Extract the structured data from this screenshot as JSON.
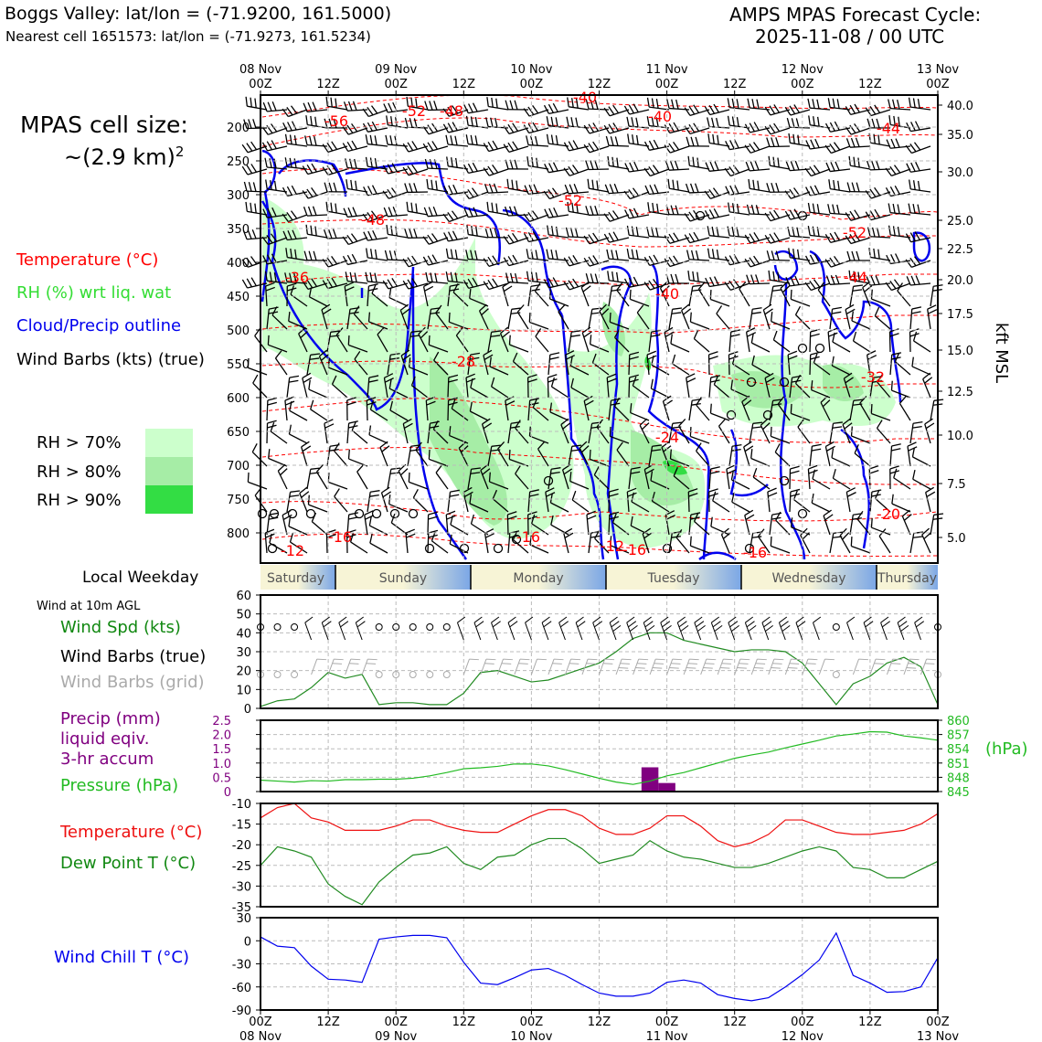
{
  "header": {
    "location_line": "Boggs Valley: lat/lon = (-71.9200, 161.5000)",
    "cell_line": "Nearest cell 1651573: lat/lon = (-71.9273, 161.5234)",
    "forecast_title": "AMPS MPAS Forecast Cycle:",
    "forecast_cycle": "2025-11-08 / 00 UTC"
  },
  "legend": {
    "cell_size_label": "MPAS cell size:",
    "cell_size_value": "~(2.9 km)",
    "cell_size_exp": "2",
    "temperature": "Temperature (°C)",
    "rh": "RH (%) wrt liq. wat",
    "cloud": "Cloud/Precip outline",
    "barbs": "Wind Barbs (kts) (true)",
    "rh70": "RH > 70%",
    "rh80": "RH > 80%",
    "rh90": "RH > 90%",
    "colors": {
      "rh70": "#ccffcc",
      "rh80": "#a6eda6",
      "rh90": "#33dd44",
      "temperature": "#ff0000",
      "cloud": "#0000ee"
    }
  },
  "time_axis": {
    "top_labels": [
      "08 Nov\n00Z",
      "12Z",
      "09 Nov\n00Z",
      "12Z",
      "10 Nov\n00Z",
      "12Z",
      "11 Nov\n00Z",
      "12Z",
      "12 Nov\n00Z",
      "12Z",
      "13 Nov\n00Z"
    ],
    "bottom_labels": [
      "00Z\n08 Nov",
      "12Z",
      "00Z\n09 Nov",
      "12Z",
      "00Z\n10 Nov",
      "12Z",
      "00Z\n11 Nov",
      "12Z",
      "00Z\n12 Nov",
      "12Z",
      "00Z\n13 Nov"
    ]
  },
  "weekday": {
    "label": "Local Weekday",
    "days": [
      "Saturday",
      "Sunday",
      "Monday",
      "Tuesday",
      "Wednesday",
      "Thursday"
    ]
  },
  "wind_panel": {
    "title": "Wind at 10m AGL",
    "speed_label": "Wind Spd (kts)",
    "barbs_true_label": "Wind Barbs (true)",
    "barbs_grid_label": "Wind Barbs (grid)"
  },
  "precip_panel": {
    "precip_label_1": "Precip (mm)",
    "precip_label_2": "liquid eqiv.",
    "precip_label_3": "3-hr accum",
    "pressure_label": "Pressure (hPa)",
    "hpa_unit": "(hPa)"
  },
  "temp_panel": {
    "temp_label": "Temperature (°C)",
    "dew_label": "Dew Point T (°C)"
  },
  "chill_panel": {
    "label": "Wind Chill T (°C)"
  },
  "chart_data": [
    {
      "type": "heatmap",
      "name": "cross-section",
      "ylabel_right": "kft MSL",
      "y_pressure_ticks": [
        200,
        250,
        300,
        350,
        400,
        450,
        500,
        550,
        600,
        650,
        700,
        750,
        800
      ],
      "y_kft_ticks": [
        "40.0",
        "35.0",
        "30.0",
        "25.0",
        "22.5",
        "20.0",
        "17.5",
        "15.0",
        "12.5",
        "10.0",
        "7.5",
        "5.0"
      ],
      "temperature_contour_labels": [
        "-56",
        "-52",
        "-48",
        "-40",
        "-40",
        "-44",
        "-52",
        "-48",
        "-52",
        "-36",
        "-40",
        "-44",
        "-28",
        "-32",
        "-24",
        "-20",
        "-16",
        "-16",
        "-12",
        "-12",
        "-16",
        "-16"
      ]
    },
    {
      "type": "line",
      "name": "wind speed",
      "ylim": [
        0,
        60
      ],
      "yticks": [
        0,
        10,
        20,
        30,
        40,
        50,
        60
      ],
      "x_hours": [
        0,
        3,
        6,
        9,
        12,
        15,
        18,
        21,
        24,
        27,
        30,
        33,
        36,
        39,
        42,
        45,
        48,
        51,
        54,
        57,
        60,
        63,
        66,
        69,
        72,
        75,
        78,
        81,
        84,
        87,
        90,
        93,
        96,
        99,
        102,
        105,
        108,
        111,
        114,
        117,
        120
      ],
      "series": [
        {
          "values": [
            1,
            4,
            5,
            11,
            19,
            16,
            18,
            2,
            3,
            3,
            2,
            2,
            8,
            19,
            20,
            17,
            14,
            15,
            18,
            21,
            24,
            30,
            37,
            40,
            40,
            36,
            34,
            32,
            30,
            31,
            31,
            30,
            24,
            13,
            2,
            13,
            17,
            24,
            27,
            22,
            2
          ],
          "color": "#228b22"
        }
      ]
    },
    {
      "type": "line",
      "name": "precip and pressure",
      "ylim_left": [
        0,
        2.5
      ],
      "yticks_left": [
        "0",
        "0.5",
        "1.0",
        "1.5",
        "2.0",
        "2.5"
      ],
      "ylim_right": [
        845,
        860
      ],
      "yticks_right": [
        "845",
        "848",
        "851",
        "854",
        "857",
        "860"
      ],
      "precip_bars": [
        {
          "x": 69,
          "value": 0.85
        },
        {
          "x": 72,
          "value": 0.3
        }
      ],
      "x_hours": [
        0,
        3,
        6,
        9,
        12,
        15,
        18,
        21,
        24,
        27,
        30,
        33,
        36,
        39,
        42,
        45,
        48,
        51,
        54,
        57,
        60,
        63,
        66,
        69,
        72,
        75,
        78,
        81,
        84,
        87,
        90,
        93,
        96,
        99,
        102,
        105,
        108,
        111,
        114,
        117,
        120
      ],
      "series": [
        {
          "values": [
            847.4,
            847.2,
            847.0,
            847.3,
            847.2,
            847.5,
            847.5,
            847.6,
            847.6,
            847.8,
            848.3,
            849.0,
            849.8,
            850.0,
            850.3,
            850.8,
            850.8,
            850.4,
            849.6,
            848.7,
            847.8,
            847.0,
            846.5,
            847.2,
            848.3,
            849.0,
            850.0,
            851.0,
            852.0,
            852.7,
            853.3,
            854.2,
            855.0,
            855.8,
            856.7,
            857.1,
            857.6,
            857.5,
            856.7,
            856.3,
            855.8
          ],
          "color": "#22bb22"
        }
      ]
    },
    {
      "type": "line",
      "name": "temperature and dew point",
      "ylim": [
        -35,
        -10
      ],
      "yticks": [
        "-10",
        "-15",
        "-20",
        "-25",
        "-30",
        "-35"
      ],
      "x_hours": [
        0,
        3,
        6,
        9,
        12,
        15,
        18,
        21,
        24,
        27,
        30,
        33,
        36,
        39,
        42,
        45,
        48,
        51,
        54,
        57,
        60,
        63,
        66,
        69,
        72,
        75,
        78,
        81,
        84,
        87,
        90,
        93,
        96,
        99,
        102,
        105,
        108,
        111,
        114,
        117,
        120
      ],
      "series": [
        {
          "values": [
            -13.5,
            -11,
            -10,
            -13.5,
            -14.5,
            -16.5,
            -16.5,
            -16.5,
            -15.5,
            -14,
            -14,
            -15.5,
            -16.5,
            -17,
            -17,
            -15,
            -13,
            -11.5,
            -11.5,
            -13,
            -16,
            -17.5,
            -17.5,
            -16,
            -13,
            -13,
            -15.5,
            -19,
            -20.5,
            -19.5,
            -17.5,
            -14,
            -14,
            -15.5,
            -17,
            -17.5,
            -17.5,
            -17,
            -16.5,
            -15,
            -12.5
          ],
          "color": "#ee1111"
        },
        {
          "values": [
            -25,
            -20.5,
            -21.5,
            -23,
            -29.5,
            -32.5,
            -34.5,
            -29,
            -25.5,
            -22.5,
            -22,
            -20.5,
            -24.5,
            -26,
            -23,
            -22.5,
            -20,
            -18.5,
            -18.5,
            -21,
            -24.5,
            -23.5,
            -22.5,
            -19,
            -21.5,
            -23,
            -23.5,
            -24.5,
            -25.5,
            -25.5,
            -24.5,
            -23,
            -21.5,
            -20.5,
            -21.5,
            -25.5,
            -26,
            -28,
            -28,
            -26,
            -24
          ],
          "color": "#228b22"
        }
      ]
    },
    {
      "type": "line",
      "name": "wind chill",
      "ylim": [
        -90,
        30
      ],
      "yticks": [
        "30",
        "0",
        "-30",
        "-60",
        "-90"
      ],
      "x_hours": [
        0,
        3,
        6,
        9,
        12,
        15,
        18,
        21,
        24,
        27,
        30,
        33,
        36,
        39,
        42,
        45,
        48,
        51,
        54,
        57,
        60,
        63,
        66,
        69,
        72,
        75,
        78,
        81,
        84,
        87,
        90,
        93,
        96,
        99,
        102,
        105,
        108,
        111,
        114,
        117,
        120
      ],
      "series": [
        {
          "values": [
            5,
            -7,
            -9,
            -33,
            -50,
            -51,
            -54,
            2,
            5,
            7,
            7,
            4,
            -28,
            -55,
            -57,
            -48,
            -38,
            -36,
            -45,
            -57,
            -68,
            -72,
            -72,
            -68,
            -54,
            -51,
            -55,
            -70,
            -75,
            -78,
            -74,
            -60,
            -44,
            -25,
            10,
            -45,
            -55,
            -67,
            -66,
            -60,
            -22
          ],
          "color": "#0000ee"
        }
      ]
    }
  ]
}
